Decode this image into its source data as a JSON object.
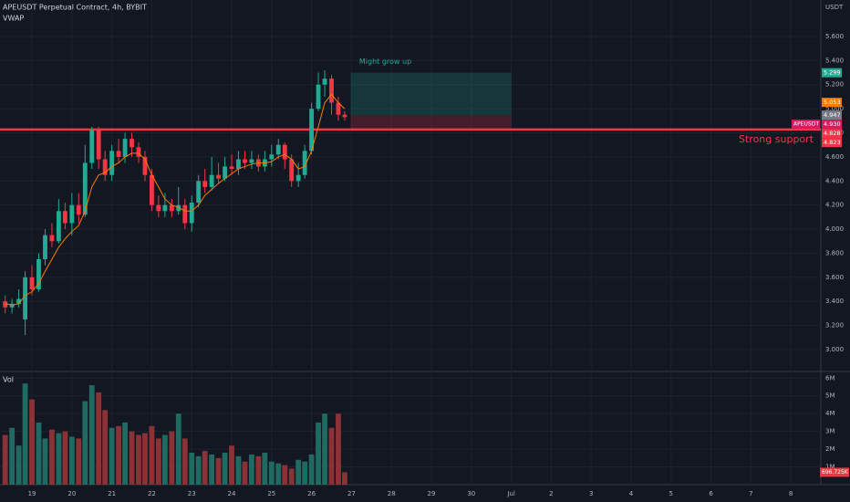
{
  "chart_data": {
    "type": "candlestick",
    "title": "APEUSDT Perpetual Contract, 4h, BYBIT",
    "indicator_label": "VWAP",
    "currency_label": "USDT",
    "volume_label": "Vol",
    "up_color": "#22ab94",
    "down_color": "#f23645",
    "vwap_color": "#f57c00",
    "vol_up_color": "#1f6b62",
    "vol_down_color": "#8b3236",
    "x": [
      18.33,
      18.5,
      18.67,
      18.83,
      19,
      19.17,
      19.33,
      19.5,
      19.67,
      19.83,
      20,
      20.17,
      20.33,
      20.5,
      20.67,
      20.83,
      21,
      21.17,
      21.33,
      21.5,
      21.67,
      21.83,
      22,
      22.17,
      22.33,
      22.5,
      22.67,
      22.83,
      23,
      23.17,
      23.33,
      23.5,
      23.67,
      23.83,
      24,
      24.17,
      24.33,
      24.5,
      24.67,
      24.83,
      25,
      25.17,
      25.33,
      25.5,
      25.67,
      25.83,
      26,
      26.17,
      26.33,
      26.5,
      26.67,
      26.83
    ],
    "open": [
      3.4,
      3.35,
      3.38,
      3.25,
      3.6,
      3.5,
      3.75,
      3.95,
      3.9,
      4.15,
      4.05,
      4.2,
      4.12,
      4.55,
      4.82,
      4.58,
      4.45,
      4.65,
      4.6,
      4.75,
      4.68,
      4.6,
      4.45,
      4.2,
      4.15,
      4.2,
      4.15,
      4.2,
      4.05,
      4.22,
      4.4,
      4.35,
      4.45,
      4.42,
      4.52,
      4.5,
      4.58,
      4.55,
      4.58,
      4.52,
      4.58,
      4.62,
      4.7,
      4.58,
      4.4,
      4.45,
      4.65,
      5.0,
      5.2,
      5.25,
      5.05,
      4.95
    ],
    "high": [
      3.45,
      3.42,
      3.5,
      3.65,
      3.7,
      3.8,
      4.0,
      4.05,
      4.25,
      4.22,
      4.3,
      4.3,
      4.7,
      4.85,
      4.85,
      4.65,
      4.7,
      4.75,
      4.8,
      4.8,
      4.72,
      4.65,
      4.5,
      4.28,
      4.3,
      4.25,
      4.35,
      4.25,
      4.28,
      4.45,
      4.5,
      4.6,
      4.55,
      4.6,
      4.62,
      4.65,
      4.65,
      4.65,
      4.62,
      4.65,
      4.7,
      4.75,
      4.72,
      4.62,
      4.55,
      4.7,
      5.05,
      5.3,
      5.32,
      5.28,
      5.1,
      4.98
    ],
    "low": [
      3.3,
      3.3,
      3.35,
      3.12,
      3.45,
      3.48,
      3.7,
      3.85,
      3.88,
      4.0,
      3.95,
      4.05,
      4.1,
      4.5,
      4.5,
      4.4,
      4.4,
      4.55,
      4.55,
      4.6,
      4.55,
      4.4,
      4.15,
      4.1,
      4.1,
      4.1,
      4.12,
      4.0,
      3.98,
      4.18,
      4.3,
      4.32,
      4.38,
      4.4,
      4.45,
      4.45,
      4.5,
      4.5,
      4.48,
      4.48,
      4.52,
      4.58,
      4.5,
      4.35,
      4.35,
      4.42,
      4.62,
      4.98,
      5.1,
      4.95,
      4.9,
      4.9
    ],
    "close": [
      3.35,
      3.38,
      3.42,
      3.6,
      3.5,
      3.75,
      3.95,
      3.9,
      4.15,
      4.05,
      4.2,
      4.12,
      4.55,
      4.82,
      4.58,
      4.45,
      4.65,
      4.6,
      4.75,
      4.68,
      4.6,
      4.45,
      4.2,
      4.15,
      4.2,
      4.15,
      4.2,
      4.05,
      4.22,
      4.4,
      4.35,
      4.45,
      4.42,
      4.52,
      4.5,
      4.58,
      4.55,
      4.58,
      4.52,
      4.58,
      4.62,
      4.7,
      4.58,
      4.4,
      4.45,
      4.65,
      5.0,
      5.2,
      5.25,
      5.05,
      4.95,
      4.93
    ],
    "vwap": [
      3.38,
      3.37,
      3.38,
      3.45,
      3.48,
      3.55,
      3.65,
      3.75,
      3.85,
      3.92,
      3.98,
      4.03,
      4.15,
      4.35,
      4.45,
      4.47,
      4.52,
      4.55,
      4.6,
      4.63,
      4.63,
      4.58,
      4.45,
      4.35,
      4.25,
      4.2,
      4.18,
      4.15,
      4.15,
      4.2,
      4.28,
      4.33,
      4.38,
      4.42,
      4.46,
      4.5,
      4.52,
      4.54,
      4.55,
      4.55,
      4.56,
      4.6,
      4.62,
      4.58,
      4.5,
      4.52,
      4.65,
      4.85,
      5.05,
      5.12,
      5.05,
      5.0
    ],
    "volume": [
      2800000,
      3200000,
      2200000,
      5700000,
      4800000,
      3500000,
      2600000,
      3100000,
      2900000,
      3000000,
      2700000,
      2600000,
      4700000,
      5600000,
      5200000,
      4200000,
      3200000,
      3300000,
      3500000,
      3000000,
      2800000,
      2900000,
      3300000,
      2600000,
      2800000,
      3000000,
      4000000,
      2600000,
      1800000,
      1600000,
      1900000,
      1700000,
      1500000,
      1800000,
      2200000,
      1600000,
      1300000,
      1700000,
      1600000,
      1800000,
      1300000,
      1200000,
      1100000,
      900000,
      1400000,
      1300000,
      1700000,
      3500000,
      4000000,
      3200000,
      4000000,
      696725
    ],
    "xlim": [
      18.2,
      38.75
    ],
    "xticks": [
      19,
      20,
      21,
      22,
      23,
      24,
      25,
      26,
      27,
      28,
      29,
      30,
      {
        "value": 31,
        "label": "Jul"
      },
      {
        "value": 32,
        "label": "2"
      },
      {
        "value": 33,
        "label": "3"
      },
      {
        "value": 34,
        "label": "4"
      },
      {
        "value": 35,
        "label": "5"
      },
      {
        "value": 36,
        "label": "6"
      },
      {
        "value": 37,
        "label": "7"
      },
      {
        "value": 38,
        "label": "8"
      }
    ],
    "ylim": [
      2.833,
      5.903
    ],
    "yticks": [
      {
        "value": 3,
        "label": "3.000"
      },
      {
        "value": 3.2,
        "label": "3.200"
      },
      {
        "value": 3.4,
        "label": "3.400"
      },
      {
        "value": 3.6,
        "label": "3.600"
      },
      {
        "value": 3.8,
        "label": "3.800"
      },
      {
        "value": 4,
        "label": "4.000"
      },
      {
        "value": 4.2,
        "label": "4.200"
      },
      {
        "value": 4.4,
        "label": "4.400"
      },
      {
        "value": 4.6,
        "label": "4.600"
      },
      {
        "value": 4.8,
        "label": "4.800"
      },
      {
        "value": 5,
        "label": "5.000"
      },
      {
        "value": 5.2,
        "label": "5.200"
      },
      {
        "value": 5.4,
        "label": "5.400"
      },
      {
        "value": 5.6,
        "label": "5.600"
      }
    ],
    "vol_ylim": [
      0,
      6220000
    ],
    "vol_yticks": [
      {
        "value": 1000000,
        "label": "1M"
      },
      {
        "value": 2000000,
        "label": "2M"
      },
      {
        "value": 3000000,
        "label": "3M"
      },
      {
        "value": 4000000,
        "label": "4M"
      },
      {
        "value": 5000000,
        "label": "5M"
      },
      {
        "value": 6000000,
        "label": "6M"
      }
    ],
    "vol_badge": {
      "value": 696725,
      "label": "696.725K",
      "color": "#f23645"
    },
    "price_badges": [
      {
        "value": 5.299,
        "color": "#22ab94"
      },
      {
        "value": 5.053,
        "color": "#f57c00"
      },
      {
        "value": 4.947,
        "color": "#787b86"
      },
      {
        "name": "APEUSDT",
        "value": 4.93,
        "label": "4.930",
        "color": "#d81b60"
      },
      {
        "value": 4.828,
        "color": "#f23645"
      },
      {
        "value": 4.823,
        "color": "#f23645"
      }
    ],
    "support": {
      "label": "Strong support",
      "value": 4.828,
      "color": "#f23645"
    },
    "position": {
      "label": "Might grow up",
      "start": 26.98,
      "end": 31,
      "target": 5.299,
      "entry": 4.947,
      "stop": 4.828
    },
    "grid": true
  }
}
